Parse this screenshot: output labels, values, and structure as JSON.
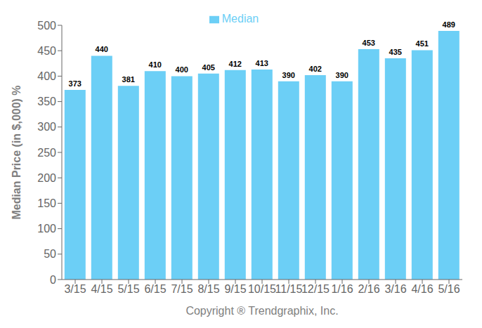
{
  "chart_data": {
    "type": "bar",
    "xlabel": "Copyright ® Trendgraphix, Inc.",
    "ylabel": "Median Price (in $,000) %",
    "categories": [
      "3/15",
      "4/15",
      "5/15",
      "6/15",
      "7/15",
      "8/15",
      "9/15",
      "10/15",
      "11/15",
      "12/15",
      "1/16",
      "2/16",
      "3/16",
      "4/16",
      "5/16"
    ],
    "series": [
      {
        "name": "Median",
        "color": "#6CCFF6",
        "values": [
          373,
          440,
          381,
          410,
          400,
          405,
          412,
          413,
          390,
          402,
          390,
          453,
          435,
          451,
          489
        ]
      }
    ],
    "ylim": [
      0,
      500
    ],
    "yticks": [
      0,
      50,
      100,
      150,
      200,
      250,
      300,
      350,
      400,
      450,
      500
    ],
    "grid": false,
    "legend": "top",
    "data_labels": true
  }
}
